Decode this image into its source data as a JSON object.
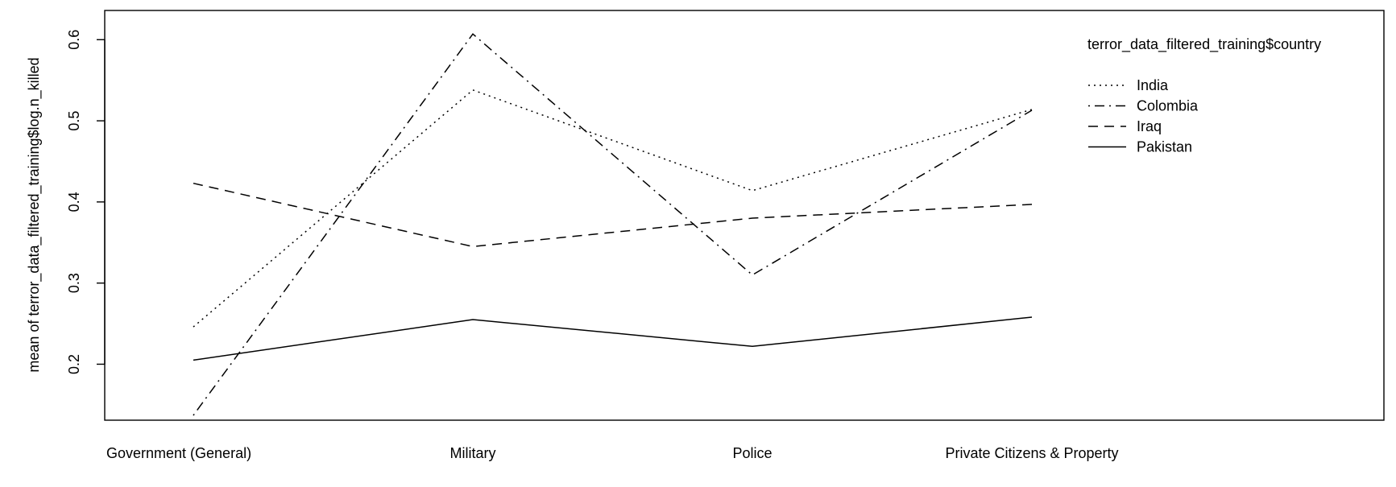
{
  "chart_data": {
    "type": "line",
    "title": "",
    "xlabel": "",
    "ylabel": "mean of  terror_data_filtered_training$log.n_killed",
    "categories": [
      "Government (General)",
      "Military",
      "Police",
      "Private Citizens & Property"
    ],
    "yticks": [
      0.2,
      0.3,
      0.4,
      0.5,
      0.6
    ],
    "ylim": [
      0.131,
      0.636
    ],
    "grid": false,
    "legend": {
      "title": "terror_data_filtered_training$country",
      "placement": "top-right",
      "entries": [
        "India",
        "Colombia",
        "Iraq",
        "Pakistan"
      ]
    },
    "series": [
      {
        "name": "India",
        "line_style": "dotted",
        "values": [
          0.246,
          0.538,
          0.414,
          0.514
        ]
      },
      {
        "name": "Colombia",
        "line_style": "dotdash",
        "values": [
          0.137,
          0.607,
          0.31,
          0.513
        ]
      },
      {
        "name": "Iraq",
        "line_style": "dashed",
        "values": [
          0.423,
          0.345,
          0.38,
          0.397
        ]
      },
      {
        "name": "Pakistan",
        "line_style": "solid",
        "values": [
          0.205,
          0.255,
          0.222,
          0.258
        ]
      }
    ]
  }
}
